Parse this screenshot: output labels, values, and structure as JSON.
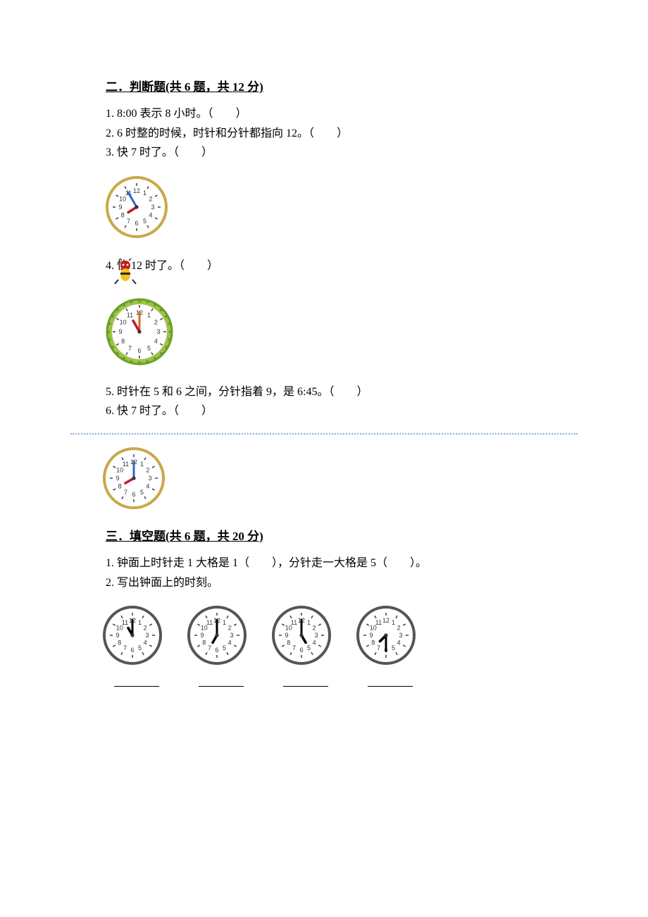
{
  "section2": {
    "heading": "二．判断题(共 6 题，共 12 分)",
    "items": [
      "1. 8:00 表示 8 小时。（　　）",
      "2. 6 时整的时候，时针和分针都指向 12。（　　）",
      "3. 快 7 时了。（　　）",
      "4.     快 12 时了。（　　）",
      "5. 时针在 5 和 6 之间，分针指着 9，是 6:45。（　　）",
      "6. 快 7 时了。（　　）"
    ],
    "clock3": {
      "type": "clock",
      "size": 88,
      "rim_color": "#c9a84a",
      "face_color": "#ffffff",
      "tick_color": "#333333",
      "hour_hand_color": "#c11b2a",
      "minute_hand_color": "#3264c8",
      "number_fontsize": 9,
      "hour": 7,
      "minute": 55,
      "numbers": [
        "12",
        "1",
        "2",
        "3",
        "4",
        "5",
        "6",
        "7",
        "8",
        "9",
        "10",
        "11"
      ]
    },
    "clock4": {
      "type": "clock",
      "size": 96,
      "rim_color": "#9fc24a",
      "accent_color": "#6aa028",
      "face_color": "#ffffff",
      "tick_color": "#333333",
      "hour_hand_color": "#c11b2a",
      "minute_hand_color": "#d66a2a",
      "number_fontsize": 9,
      "hour": 11,
      "minute": 0,
      "numbers": [
        "12",
        "1",
        "2",
        "3",
        "4",
        "5",
        "6",
        "7",
        "8",
        "9",
        "10",
        "11"
      ]
    },
    "clock6": {
      "type": "clock",
      "size": 88,
      "rim_color": "#c9a84a",
      "face_color": "#ffffff",
      "tick_color": "#333333",
      "hour_hand_color": "#c11b2a",
      "minute_hand_color": "#3264c8",
      "number_fontsize": 9,
      "hour": 8,
      "minute": 0,
      "numbers": [
        "12",
        "1",
        "2",
        "3",
        "4",
        "5",
        "6",
        "7",
        "8",
        "9",
        "10",
        "11"
      ]
    },
    "bee_icon_label": "cartoon-character"
  },
  "section3": {
    "heading": "三．填空题(共 6 题，共 20 分)",
    "items": [
      "1. 钟面上时针走 1 大格是 1（　　），分针走一大格是 5（　　）。",
      "2. 写出钟面上的时刻。"
    ],
    "clocks": [
      {
        "hour": 11,
        "minute": 0
      },
      {
        "hour": 7,
        "minute": 0
      },
      {
        "hour": 5,
        "minute": 0
      },
      {
        "hour": 7,
        "minute": 30
      }
    ],
    "clock_style": {
      "type": "clock",
      "size": 84,
      "rim_color": "#555555",
      "face_color": "#ffffff",
      "tick_color": "#333333",
      "hour_hand_color": "#000000",
      "minute_hand_color": "#000000",
      "number_fontsize": 9,
      "numbers": [
        "12",
        "1",
        "2",
        "3",
        "4",
        "5",
        "6",
        "7",
        "8",
        "9",
        "10",
        "11"
      ]
    },
    "blank": "________"
  },
  "colors": {
    "divider": "#88aed6",
    "text": "#000000",
    "background": "#ffffff"
  }
}
